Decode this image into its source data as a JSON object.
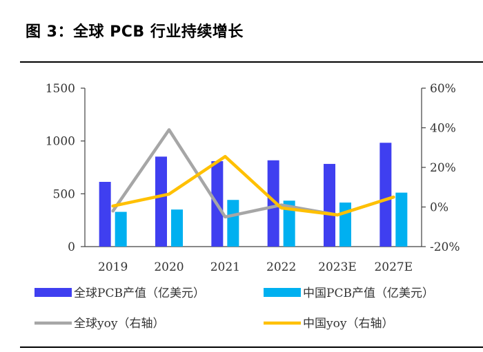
{
  "title": "图 3：全球 PCB 行业持续增长",
  "colors": {
    "global_value": "#3f3ff0",
    "china_value": "#00b0f0",
    "global_yoy": "#a6a6a6",
    "china_yoy": "#ffc000",
    "axis": "#404040",
    "text": "#333333"
  },
  "chart_data": {
    "type": "bar",
    "title": "图 3：全球 PCB 行业持续增长",
    "categories": [
      "2019",
      "2020",
      "2021",
      "2022",
      "2023E",
      "2027E"
    ],
    "y_left": {
      "lim": [
        0,
        1500
      ],
      "ticks": [
        0,
        500,
        1000,
        1500
      ],
      "tick_labels": [
        "0",
        "500",
        "1000",
        "1500"
      ]
    },
    "y_right": {
      "lim": [
        -20,
        60
      ],
      "ticks": [
        -20,
        0,
        20,
        40,
        60
      ],
      "tick_labels": [
        "-20%",
        "0%",
        "20%",
        "40%",
        "60%"
      ]
    },
    "series": [
      {
        "name": "全球PCB产值（亿美元）",
        "kind": "bar",
        "axis": "left",
        "values": [
          613,
          852,
          809,
          817,
          783,
          983
        ]
      },
      {
        "name": "中国PCB产值（亿美元）",
        "kind": "bar",
        "axis": "left",
        "values": [
          329,
          351,
          442,
          435,
          417,
          511
        ]
      },
      {
        "name": "全球yoy（右轴）",
        "kind": "line",
        "axis": "right",
        "values": [
          -2,
          39,
          -5,
          1,
          -4,
          5
        ]
      },
      {
        "name": "中国yoy（右轴）",
        "kind": "line",
        "axis": "right",
        "values": [
          0.5,
          6.5,
          25.5,
          -0.5,
          -4,
          5
        ]
      }
    ],
    "legend": {
      "placement": "bottom",
      "items": [
        "全球PCB产值（亿美元）",
        "中国PCB产值（亿美元）",
        "全球yoy（右轴）",
        "中国yoy（右轴）"
      ]
    },
    "grid": false
  }
}
